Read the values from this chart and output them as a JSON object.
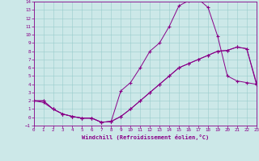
{
  "background_color": "#cce8e8",
  "line_color": "#880088",
  "grid_color": "#99cccc",
  "xlabel": "Windchill (Refroidissement éolien,°C)",
  "xlim": [
    0,
    23
  ],
  "ylim": [
    -1,
    14
  ],
  "xticks": [
    0,
    1,
    2,
    3,
    4,
    5,
    6,
    7,
    8,
    9,
    10,
    11,
    12,
    13,
    14,
    15,
    16,
    17,
    18,
    19,
    20,
    21,
    22,
    23
  ],
  "yticks": [
    -1,
    0,
    1,
    2,
    3,
    4,
    5,
    6,
    7,
    8,
    9,
    10,
    11,
    12,
    13,
    14
  ],
  "curve1_x": [
    0,
    1,
    2,
    3,
    4,
    5,
    6,
    7,
    8,
    9,
    10,
    11,
    12,
    13,
    14,
    15,
    16,
    17,
    18,
    19,
    20,
    21,
    22,
    23
  ],
  "curve1_y": [
    2.0,
    2.0,
    1.0,
    0.4,
    0.1,
    -0.1,
    -0.1,
    -0.6,
    -0.5,
    3.2,
    4.2,
    6.0,
    8.0,
    9.0,
    11.0,
    13.5,
    14.1,
    14.3,
    13.3,
    9.8,
    5.0,
    4.4,
    4.2,
    4.0
  ],
  "curve2_x": [
    0,
    1,
    2,
    3,
    4,
    5,
    6,
    7,
    8,
    9,
    10,
    11,
    12,
    13,
    14,
    15,
    16,
    17,
    18,
    19,
    20,
    21,
    22,
    23
  ],
  "curve2_y": [
    2.0,
    2.0,
    1.0,
    0.4,
    0.1,
    -0.1,
    -0.1,
    -0.6,
    -0.5,
    0.1,
    1.0,
    2.0,
    3.0,
    4.0,
    5.0,
    6.0,
    6.5,
    7.0,
    7.5,
    8.0,
    8.1,
    8.5,
    8.3,
    4.0
  ],
  "curve3_x": [
    0,
    1,
    2,
    3,
    4,
    5,
    6,
    7,
    8,
    9,
    10,
    11,
    12,
    13,
    14,
    15,
    16,
    17,
    18,
    19,
    20,
    21,
    22,
    23
  ],
  "curve3_y": [
    2.0,
    1.8,
    1.0,
    0.4,
    0.1,
    -0.1,
    -0.1,
    -0.6,
    -0.5,
    0.1,
    1.0,
    2.0,
    3.0,
    4.0,
    5.0,
    6.0,
    6.5,
    7.0,
    7.5,
    8.0,
    8.1,
    8.5,
    8.3,
    4.2
  ]
}
